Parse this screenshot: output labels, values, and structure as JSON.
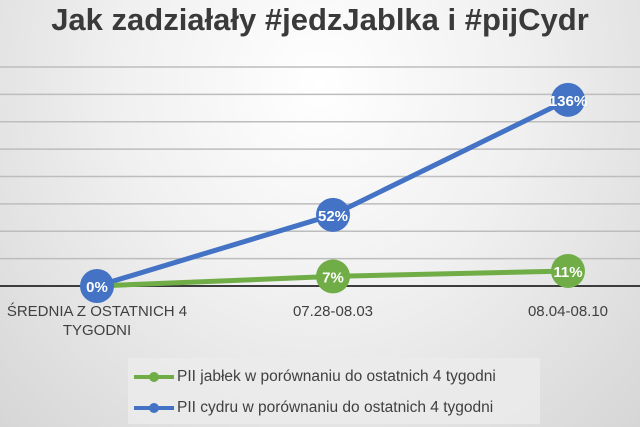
{
  "chart_data": {
    "type": "line",
    "title": "Jak zadziałały #jedzJablka i #pijCydr",
    "categories": [
      "ŚREDNIA Z OSTATNICH 4 TYGODNI",
      "07.28-08.03",
      "08.04-08.10"
    ],
    "category_labels": [
      [
        "ŚREDNIA Z OSTATNICH 4",
        "TYGODNI"
      ],
      [
        "07.28-08.03"
      ],
      [
        "08.04-08.10"
      ]
    ],
    "series": [
      {
        "name": "PII jabłek w porównaniu do ostatnich 4 tygodni",
        "values": [
          0,
          7,
          11
        ],
        "labels": [
          "",
          "7%",
          "11%"
        ],
        "color": "#70ad47"
      },
      {
        "name": "PII cydru w porównaniu do ostatnich 4 tygodni",
        "values": [
          0,
          52,
          136
        ],
        "labels": [
          "0%",
          "52%",
          "136%"
        ],
        "color": "#4472c4"
      }
    ],
    "ylim": [
      0,
      160
    ],
    "grid": true,
    "y_axis_visible": false,
    "legend": "bottom"
  }
}
